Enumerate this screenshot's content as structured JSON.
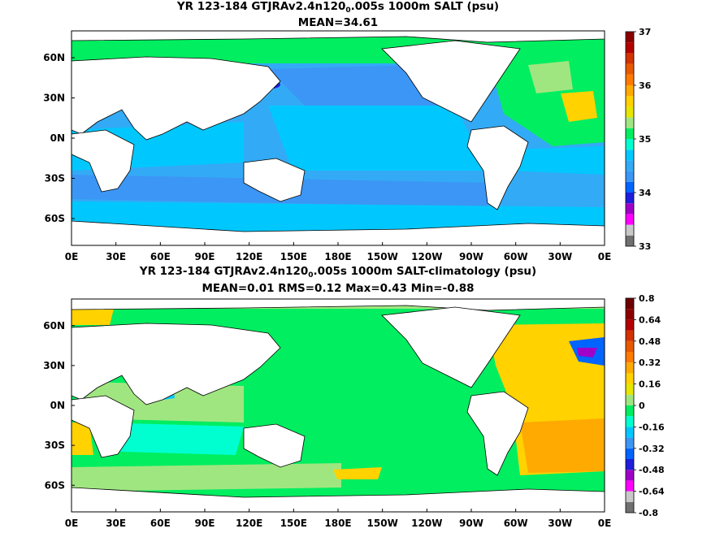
{
  "chart_data": [
    {
      "type": "heatmap",
      "title": "YR 123-184 GTJRAv2.4n120",
      "title_sub": "0",
      "title_tail": ".005s 1000m SALT (psu)",
      "subtitle": "MEAN=34.61",
      "x_ticks": [
        "0E",
        "30E",
        "60E",
        "90E",
        "120E",
        "150E",
        "180E",
        "150W",
        "120W",
        "90W",
        "60W",
        "30W",
        "0E"
      ],
      "y_ticks": [
        "60N",
        "30N",
        "0N",
        "30S",
        "60S"
      ],
      "xlim": [
        0,
        360
      ],
      "ylim": [
        -80,
        80
      ],
      "x_tick_values": [
        0,
        30,
        60,
        90,
        120,
        150,
        180,
        210,
        240,
        270,
        300,
        330,
        360
      ],
      "y_tick_values": [
        60,
        30,
        0,
        -30,
        -60
      ],
      "colorbar": {
        "ticks": [
          "37",
          "36",
          "35",
          "34",
          "33"
        ],
        "tick_values": [
          37,
          36,
          35,
          34,
          33
        ],
        "levels": [
          33,
          33.2,
          33.4,
          33.6,
          33.8,
          34,
          34.2,
          34.4,
          34.6,
          34.8,
          35,
          35.2,
          35.4,
          35.6,
          35.8,
          36,
          36.2,
          36.4,
          36.6,
          36.8,
          37
        ],
        "colors": [
          "#707070",
          "#c8c8c8",
          "#ff00ff",
          "#a000c8",
          "#1e1edc",
          "#0064ff",
          "#3c96f5",
          "#33aaf5",
          "#00c8ff",
          "#00ffd0",
          "#00ee60",
          "#a0e680",
          "#e6e600",
          "#ffd200",
          "#ffaa00",
          "#ff7a00",
          "#e85a00",
          "#d23200",
          "#b40000",
          "#8c0000"
        ]
      }
    },
    {
      "type": "heatmap",
      "title": "YR 123-184 GTJRAv2.4n120",
      "title_sub": "0",
      "title_tail": ".005s 1000m SALT-climatology (psu)",
      "subtitle": "MEAN=0.01   RMS=0.12   Max=0.43   Min=-0.88",
      "x_ticks": [
        "0E",
        "30E",
        "60E",
        "90E",
        "120E",
        "150E",
        "180E",
        "150W",
        "120W",
        "90W",
        "60W",
        "30W",
        "0E"
      ],
      "y_ticks": [
        "60N",
        "30N",
        "0N",
        "30S",
        "60S"
      ],
      "xlim": [
        0,
        360
      ],
      "ylim": [
        -80,
        80
      ],
      "x_tick_values": [
        0,
        30,
        60,
        90,
        120,
        150,
        180,
        210,
        240,
        270,
        300,
        330,
        360
      ],
      "y_tick_values": [
        60,
        30,
        0,
        -30,
        -60
      ],
      "colorbar": {
        "ticks": [
          "0.8",
          "0.64",
          "0.48",
          "0.32",
          "0.16",
          "0",
          "-0.16",
          "-0.32",
          "-0.48",
          "-0.64",
          "-0.8"
        ],
        "tick_values": [
          0.8,
          0.64,
          0.48,
          0.32,
          0.16,
          0,
          -0.16,
          -0.32,
          -0.48,
          -0.64,
          -0.8
        ],
        "levels": [
          -0.8,
          -0.72,
          -0.64,
          -0.56,
          -0.48,
          -0.4,
          -0.32,
          -0.24,
          -0.16,
          -0.08,
          0,
          0.08,
          0.16,
          0.24,
          0.32,
          0.4,
          0.48,
          0.56,
          0.64,
          0.72,
          0.8
        ],
        "colors": [
          "#707070",
          "#c8c8c8",
          "#ff00ff",
          "#a000c8",
          "#1e1edc",
          "#0064ff",
          "#3c96f5",
          "#00c8ff",
          "#00ffd0",
          "#00ee60",
          "#a0e680",
          "#e6e600",
          "#ffd200",
          "#ffaa00",
          "#ff7a00",
          "#e85a00",
          "#d23200",
          "#b40000",
          "#8c0000",
          "#6e0000"
        ]
      }
    }
  ],
  "colors": {
    "land": "#ffffff",
    "coast": "#000000",
    "top_base": "#33aaf5",
    "bottom_base": "#00ee60"
  }
}
